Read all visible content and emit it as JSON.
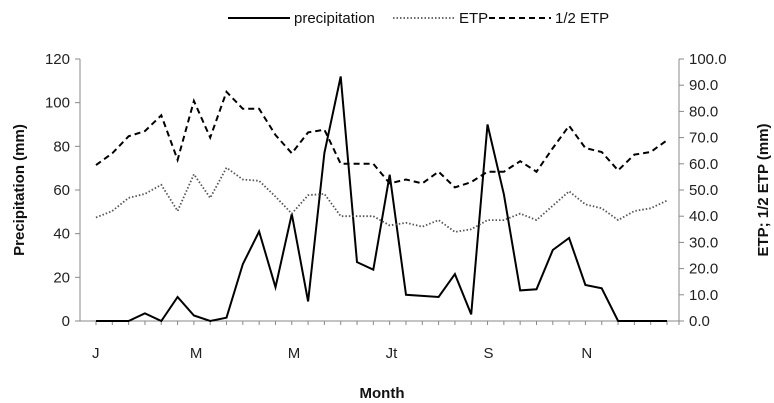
{
  "chart_data": {
    "type": "line",
    "xlabel": "Month",
    "ylabel_left": "Precipitation (mm)",
    "ylabel_right": "ETP; 1/2 ETP (mm)",
    "x_tick_labels": [
      {
        "x": 1,
        "label": "J"
      },
      {
        "x": 7,
        "label": "M"
      },
      {
        "x": 13,
        "label": "M"
      },
      {
        "x": 19,
        "label": "Jt"
      },
      {
        "x": 25,
        "label": "S"
      },
      {
        "x": 31,
        "label": "N"
      }
    ],
    "x_range": [
      1,
      37
    ],
    "y_left": {
      "min": 0,
      "max": 120,
      "step": 20,
      "ticks": [
        "0",
        "20",
        "40",
        "60",
        "80",
        "100",
        "120"
      ]
    },
    "y_right": {
      "min": 0,
      "max": 100,
      "step": 10,
      "ticks": [
        "0.0",
        "10.0",
        "20.0",
        "30.0",
        "40.0",
        "50.0",
        "60.0",
        "70.0",
        "80.0",
        "90.0",
        "100.0"
      ]
    },
    "legend_position": "top",
    "series": [
      {
        "name": "precipitation",
        "axis": "left",
        "style": "solid",
        "color": "#000000",
        "values": [
          0,
          0,
          0,
          3.5,
          0,
          11,
          2.5,
          0,
          1.5,
          26,
          41,
          15.5,
          49,
          9,
          77,
          112,
          27,
          23.5,
          67,
          12,
          11.5,
          11,
          21.5,
          3,
          90,
          58,
          14,
          14.5,
          32.5,
          38,
          16.5,
          15,
          0,
          0,
          0,
          0
        ]
      },
      {
        "name": "ETP",
        "axis": "right",
        "style": "dotted",
        "color": "#555555",
        "values": [
          39.5,
          42,
          47,
          48.5,
          52,
          42,
          56,
          47,
          58.5,
          54,
          53.5,
          47.5,
          41,
          48,
          48.5,
          40,
          40,
          40,
          36.5,
          37.5,
          36,
          38.5,
          34,
          35,
          38.5,
          38.5,
          41,
          38.5,
          44,
          49.5,
          44.5,
          43,
          38.5,
          42,
          43,
          46
        ]
      },
      {
        "name": "1/2 ETP",
        "axis": "right",
        "style": "dashed",
        "color": "#000000",
        "values": [
          59.5,
          64,
          70.5,
          72.5,
          78.5,
          61.5,
          84,
          70,
          87.5,
          81,
          81,
          71,
          64,
          72,
          73,
          60,
          60,
          60,
          52.5,
          54,
          52.5,
          57,
          51,
          53,
          57,
          57,
          61,
          57,
          66,
          74.5,
          66,
          64.5,
          57.5,
          63.5,
          64.5,
          69
        ]
      }
    ]
  }
}
